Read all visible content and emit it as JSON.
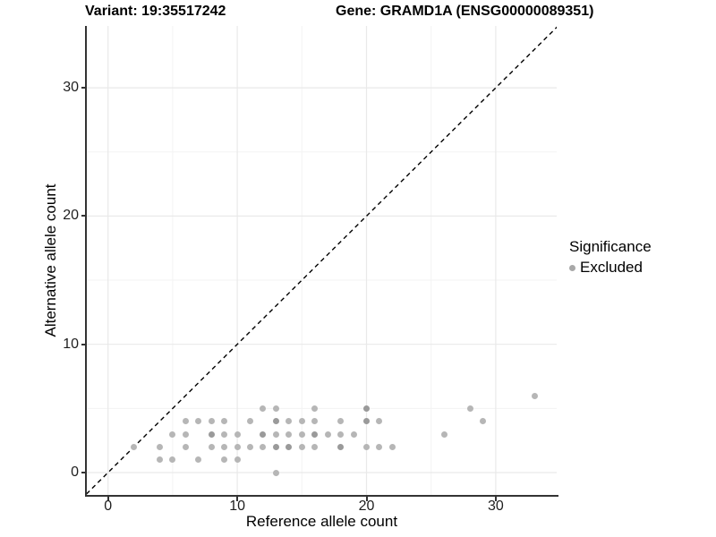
{
  "colors": {
    "background": "#ffffff",
    "point": "#b6b6b6",
    "point_overlap": "#9a9a9a",
    "legend_point": "#a8a8a8",
    "grid_major": "#e9e9e9",
    "grid_minor": "#f3f3f3",
    "axis_line": "#333333",
    "tick_label": "#1f1f1f",
    "reference_line": "#000000"
  },
  "chart_data": {
    "type": "scatter",
    "title_left": "Variant: 19:35517242",
    "title_right": "Gene: GRAMD1A (ENSG00000089351)",
    "xlabel": "Reference allele count",
    "ylabel": "Alternative allele count",
    "xlim": [
      -1.7,
      34.8
    ],
    "ylim": [
      -1.7,
      34.8
    ],
    "x_ticks": [
      0,
      10,
      20,
      30
    ],
    "y_ticks": [
      0,
      10,
      20,
      30
    ],
    "minor_gridlines": [
      5,
      15,
      25
    ],
    "grid": true,
    "aspect": "equal",
    "reference_line": {
      "type": "identity",
      "equation": "y = x",
      "style": "dashed",
      "color": "#000000"
    },
    "legend": {
      "title": "Significance",
      "position": "right",
      "entries": [
        {
          "label": "Excluded",
          "color": "#a8a8a8",
          "marker": "circle"
        }
      ]
    },
    "series": [
      {
        "name": "Excluded",
        "points": [
          [
            13,
            0
          ],
          [
            4,
            1
          ],
          [
            5,
            1
          ],
          [
            7,
            1
          ],
          [
            9,
            1
          ],
          [
            10,
            1
          ],
          [
            2,
            2
          ],
          [
            4,
            2
          ],
          [
            6,
            2
          ],
          [
            8,
            2
          ],
          [
            9,
            2
          ],
          [
            10,
            2
          ],
          [
            11,
            2
          ],
          [
            12,
            2
          ],
          [
            15,
            2
          ],
          [
            16,
            2
          ],
          [
            20,
            2
          ],
          [
            21,
            2
          ],
          [
            22,
            2
          ],
          [
            5,
            3
          ],
          [
            6,
            3
          ],
          [
            9,
            3
          ],
          [
            10,
            3
          ],
          [
            13,
            3
          ],
          [
            14,
            3
          ],
          [
            15,
            3
          ],
          [
            17,
            3
          ],
          [
            18,
            3
          ],
          [
            19,
            3
          ],
          [
            26,
            3
          ],
          [
            6,
            4
          ],
          [
            7,
            4
          ],
          [
            8,
            4
          ],
          [
            9,
            4
          ],
          [
            11,
            4
          ],
          [
            14,
            4
          ],
          [
            15,
            4
          ],
          [
            16,
            4
          ],
          [
            18,
            4
          ],
          [
            21,
            4
          ],
          [
            29,
            4
          ],
          [
            12,
            5
          ],
          [
            13,
            5
          ],
          [
            16,
            5
          ],
          [
            28,
            5
          ],
          [
            33,
            6
          ]
        ],
        "overlap_darker_points": [
          [
            13,
            2
          ],
          [
            14,
            2
          ],
          [
            18,
            2
          ],
          [
            8,
            3
          ],
          [
            12,
            3
          ],
          [
            16,
            3
          ],
          [
            13,
            4
          ],
          [
            20,
            4
          ],
          [
            20,
            5
          ]
        ]
      }
    ]
  }
}
